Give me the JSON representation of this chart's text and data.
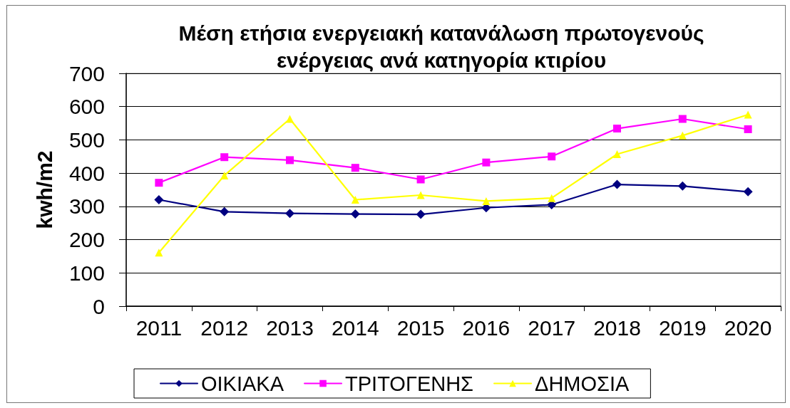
{
  "chart_data": {
    "type": "line",
    "title": "Μέση ετήσια ενεργειακή κατανάλωση πρωτογενούς ενέργειας ανά κατηγορία κτιρίου",
    "ylabel": "kwh/m2",
    "categories": [
      "2011",
      "2012",
      "2013",
      "2014",
      "2015",
      "2016",
      "2017",
      "2018",
      "2019",
      "2020"
    ],
    "series": [
      {
        "name": "ΟΙΚΙΑΚΑ",
        "color": "#000080",
        "marker": "diamond",
        "values": [
          320,
          284,
          279,
          277,
          276,
          296,
          305,
          366,
          361,
          344
        ]
      },
      {
        "name": "ΤΡΙΤΟΓΕΝΗΣ",
        "color": "#ff00ff",
        "marker": "square",
        "values": [
          371,
          448,
          439,
          416,
          381,
          432,
          450,
          534,
          563,
          532
        ]
      },
      {
        "name": "ΔΗΜΟΣΙΑ",
        "color": "#ffff00",
        "marker": "triangle",
        "values": [
          161,
          393,
          563,
          320,
          334,
          316,
          325,
          457,
          513,
          576
        ]
      }
    ],
    "ylim": [
      0,
      700
    ],
    "yticks": [
      0,
      100,
      200,
      300,
      400,
      500,
      600,
      700
    ],
    "grid": "y",
    "legend": "bottom"
  }
}
